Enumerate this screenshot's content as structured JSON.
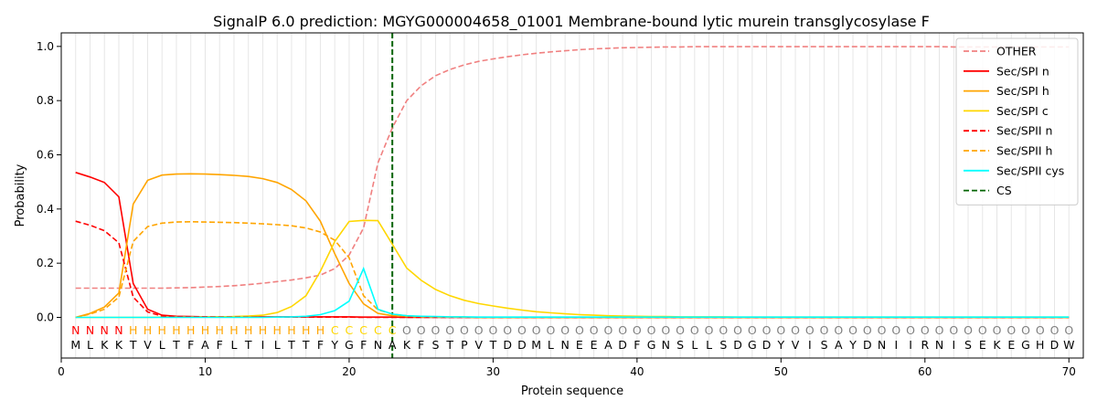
{
  "chart_data": {
    "type": "line",
    "title": "SignalP 6.0 prediction: MGYG000004658_01001 Membrane-bound lytic murein transglycosylase F",
    "xlabel": "Protein sequence",
    "ylabel": "Probability",
    "xlim": [
      0,
      71
    ],
    "ylim": [
      -0.15,
      1.05
    ],
    "xticks": [
      0,
      10,
      20,
      30,
      40,
      50,
      60,
      70
    ],
    "yticks": [
      0.0,
      0.2,
      0.4,
      0.6,
      0.8,
      1.0
    ],
    "legend_position": "top-right",
    "grid": "vertical lines at each residue",
    "x": [
      1,
      2,
      3,
      4,
      5,
      6,
      7,
      8,
      9,
      10,
      11,
      12,
      13,
      14,
      15,
      16,
      17,
      18,
      19,
      20,
      21,
      22,
      23,
      24,
      25,
      26,
      27,
      28,
      29,
      30,
      31,
      32,
      33,
      34,
      35,
      36,
      37,
      38,
      39,
      40,
      41,
      42,
      43,
      44,
      45,
      46,
      47,
      48,
      49,
      50,
      51,
      52,
      53,
      54,
      55,
      56,
      57,
      58,
      59,
      60,
      61,
      62,
      63,
      64,
      65,
      66,
      67,
      68,
      69,
      70
    ],
    "sequence": [
      "M",
      "L",
      "K",
      "K",
      "T",
      "V",
      "L",
      "T",
      "F",
      "A",
      "F",
      "L",
      "T",
      "I",
      "L",
      "T",
      "T",
      "F",
      "Y",
      "G",
      "F",
      "N",
      "A",
      "K",
      "F",
      "S",
      "T",
      "P",
      "V",
      "T",
      "D",
      "D",
      "M",
      "L",
      "N",
      "E",
      "E",
      "A",
      "D",
      "F",
      "G",
      "N",
      "S",
      "L",
      "L",
      "S",
      "D",
      "G",
      "D",
      "Y",
      "V",
      "I",
      "S",
      "A",
      "Y",
      "D",
      "N",
      "I",
      "I",
      "R",
      "N",
      "I",
      "S",
      "E",
      "K",
      "E",
      "G",
      "H",
      "D",
      "W"
    ],
    "labels": [
      "N",
      "N",
      "N",
      "N",
      "H",
      "H",
      "H",
      "H",
      "H",
      "H",
      "H",
      "H",
      "H",
      "H",
      "H",
      "H",
      "H",
      "H",
      "C",
      "C",
      "C",
      "C",
      "C",
      "O",
      "O",
      "O",
      "O",
      "O",
      "O",
      "O",
      "O",
      "O",
      "O",
      "O",
      "O",
      "O",
      "O",
      "O",
      "O",
      "O",
      "O",
      "O",
      "O",
      "O",
      "O",
      "O",
      "O",
      "O",
      "O",
      "O",
      "O",
      "O",
      "O",
      "O",
      "O",
      "O",
      "O",
      "O",
      "O",
      "O",
      "O",
      "O",
      "O",
      "O",
      "O",
      "O",
      "O",
      "O",
      "O",
      "O"
    ],
    "label_colors": {
      "N": "#ff0000",
      "H": "#ffa500",
      "C": "#ffd700",
      "O": "#808080"
    },
    "cleavage_site": 23,
    "series": [
      {
        "name": "OTHER",
        "color": "#f08080",
        "dash": "dashed",
        "values": [
          0.108,
          0.108,
          0.108,
          0.108,
          0.108,
          0.108,
          0.108,
          0.109,
          0.11,
          0.112,
          0.114,
          0.117,
          0.121,
          0.126,
          0.132,
          0.138,
          0.146,
          0.156,
          0.18,
          0.23,
          0.33,
          0.57,
          0.7,
          0.8,
          0.855,
          0.892,
          0.915,
          0.932,
          0.945,
          0.954,
          0.962,
          0.969,
          0.975,
          0.98,
          0.984,
          0.988,
          0.991,
          0.993,
          0.995,
          0.996,
          0.997,
          0.998,
          0.998,
          0.999,
          0.999,
          0.999,
          0.999,
          0.999,
          0.999,
          0.999,
          0.999,
          0.999,
          0.999,
          0.999,
          0.999,
          0.999,
          0.999,
          0.999,
          0.999,
          0.999,
          0.999,
          0.998,
          0.998,
          0.998,
          0.998,
          0.998,
          0.998,
          0.998,
          0.998,
          0.998
        ]
      },
      {
        "name": "Sec/SPI n",
        "color": "#ff0000",
        "dash": "solid",
        "values": [
          0.535,
          0.518,
          0.498,
          0.445,
          0.125,
          0.03,
          0.008,
          0.004,
          0.003,
          0.002,
          0.002,
          0.002,
          0.002,
          0.002,
          0.002,
          0.002,
          0.002,
          0.002,
          0.002,
          0.002,
          0.001,
          0.001,
          0.001,
          0,
          0,
          0,
          0,
          0,
          0,
          0,
          0,
          0,
          0,
          0,
          0,
          0,
          0,
          0,
          0,
          0,
          0,
          0,
          0,
          0,
          0,
          0,
          0,
          0,
          0,
          0,
          0,
          0,
          0,
          0,
          0,
          0,
          0,
          0,
          0,
          0,
          0,
          0,
          0,
          0,
          0,
          0,
          0,
          0,
          0,
          0
        ]
      },
      {
        "name": "Sec/SPI h",
        "color": "#ffa500",
        "dash": "solid",
        "values": [
          0.0,
          0.015,
          0.038,
          0.09,
          0.418,
          0.506,
          0.525,
          0.529,
          0.53,
          0.529,
          0.527,
          0.524,
          0.52,
          0.512,
          0.498,
          0.472,
          0.43,
          0.355,
          0.235,
          0.125,
          0.05,
          0.015,
          0.006,
          0.003,
          0.002,
          0.001,
          0.001,
          0.001,
          0,
          0,
          0,
          0,
          0,
          0,
          0,
          0,
          0,
          0,
          0,
          0,
          0,
          0,
          0,
          0,
          0,
          0,
          0,
          0,
          0,
          0,
          0,
          0,
          0,
          0,
          0,
          0,
          0,
          0,
          0,
          0,
          0,
          0,
          0,
          0,
          0,
          0,
          0,
          0,
          0,
          0
        ]
      },
      {
        "name": "Sec/SPI c",
        "color": "#ffd700",
        "dash": "solid",
        "values": [
          0,
          0,
          0,
          0,
          0,
          0,
          0.001,
          0.001,
          0.001,
          0.002,
          0.002,
          0.003,
          0.005,
          0.008,
          0.018,
          0.04,
          0.08,
          0.17,
          0.28,
          0.354,
          0.358,
          0.357,
          0.27,
          0.182,
          0.137,
          0.103,
          0.08,
          0.063,
          0.051,
          0.042,
          0.034,
          0.027,
          0.021,
          0.017,
          0.013,
          0.01,
          0.008,
          0.006,
          0.005,
          0.004,
          0.003,
          0.003,
          0.002,
          0.002,
          0.002,
          0.002,
          0.001,
          0.001,
          0.001,
          0.001,
          0.001,
          0.001,
          0.001,
          0.001,
          0.001,
          0.001,
          0.001,
          0.001,
          0.001,
          0.001,
          0.001,
          0.001,
          0.001,
          0.001,
          0.001,
          0.001,
          0.001,
          0.001,
          0.001,
          0.001
        ]
      },
      {
        "name": "Sec/SPII n",
        "color": "#ff0000",
        "dash": "dashed",
        "values": [
          0.355,
          0.34,
          0.32,
          0.275,
          0.075,
          0.02,
          0.005,
          0.003,
          0.002,
          0.002,
          0.001,
          0.001,
          0.001,
          0.001,
          0.001,
          0.001,
          0.001,
          0.001,
          0.001,
          0.001,
          0,
          0,
          0,
          0,
          0,
          0,
          0,
          0,
          0,
          0,
          0,
          0,
          0,
          0,
          0,
          0,
          0,
          0,
          0,
          0,
          0,
          0,
          0,
          0,
          0,
          0,
          0,
          0,
          0,
          0,
          0,
          0,
          0,
          0,
          0,
          0,
          0,
          0,
          0,
          0,
          0,
          0,
          0,
          0,
          0,
          0,
          0,
          0,
          0,
          0
        ]
      },
      {
        "name": "Sec/SPII h",
        "color": "#ffa500",
        "dash": "dashed",
        "values": [
          0.0,
          0.012,
          0.03,
          0.075,
          0.28,
          0.335,
          0.348,
          0.352,
          0.353,
          0.352,
          0.351,
          0.35,
          0.348,
          0.345,
          0.342,
          0.338,
          0.33,
          0.315,
          0.285,
          0.22,
          0.08,
          0.028,
          0.012,
          0.006,
          0.003,
          0.002,
          0.001,
          0.001,
          0,
          0,
          0,
          0,
          0,
          0,
          0,
          0,
          0,
          0,
          0,
          0,
          0,
          0,
          0,
          0,
          0,
          0,
          0,
          0,
          0,
          0,
          0,
          0,
          0,
          0,
          0,
          0,
          0,
          0,
          0,
          0,
          0,
          0,
          0,
          0,
          0,
          0,
          0,
          0,
          0,
          0
        ]
      },
      {
        "name": "Sec/SPII cys",
        "color": "#00ffff",
        "dash": "solid",
        "values": [
          0,
          0,
          0,
          0,
          0,
          0,
          0,
          0,
          0,
          0,
          0,
          0,
          0,
          0,
          0.001,
          0.002,
          0.004,
          0.01,
          0.025,
          0.06,
          0.18,
          0.03,
          0.012,
          0.006,
          0.004,
          0.003,
          0.002,
          0.002,
          0.001,
          0.001,
          0.001,
          0.001,
          0.001,
          0.001,
          0.001,
          0.001,
          0.001,
          0.001,
          0.001,
          0.001,
          0.001,
          0.001,
          0.001,
          0.001,
          0.001,
          0.001,
          0.001,
          0.001,
          0.001,
          0.001,
          0.001,
          0.001,
          0.001,
          0.001,
          0.001,
          0.001,
          0.001,
          0.001,
          0.001,
          0.001,
          0.001,
          0.001,
          0.001,
          0.001,
          0.001,
          0.001,
          0.001,
          0.001,
          0.001,
          0.001
        ]
      }
    ],
    "legend": [
      {
        "name": "OTHER",
        "color": "#f08080",
        "dash": "dashed"
      },
      {
        "name": "Sec/SPI n",
        "color": "#ff0000",
        "dash": "solid"
      },
      {
        "name": "Sec/SPI h",
        "color": "#ffa500",
        "dash": "solid"
      },
      {
        "name": "Sec/SPI c",
        "color": "#ffd700",
        "dash": "solid"
      },
      {
        "name": "Sec/SPII n",
        "color": "#ff0000",
        "dash": "dashed"
      },
      {
        "name": "Sec/SPII h",
        "color": "#ffa500",
        "dash": "dashed"
      },
      {
        "name": "Sec/SPII cys",
        "color": "#00ffff",
        "dash": "solid"
      },
      {
        "name": "CS",
        "color": "#006400",
        "dash": "dashed"
      }
    ]
  }
}
